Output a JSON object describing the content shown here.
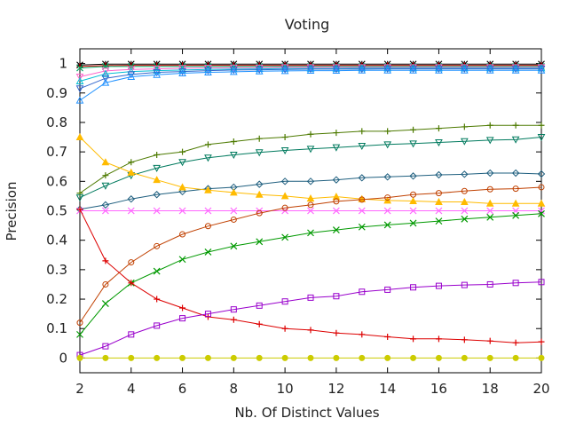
{
  "chart_data": {
    "type": "line",
    "title": "Voting",
    "xlabel": "Nb. Of Distinct Values",
    "ylabel": "Precision",
    "xlim": [
      2,
      20
    ],
    "ylim": [
      -0.05,
      1.05
    ],
    "x_ticks": [
      "2",
      "4",
      "6",
      "8",
      "10",
      "12",
      "14",
      "16",
      "18",
      "20"
    ],
    "y_ticks": [
      "0",
      "0.1",
      "0.2",
      "0.3",
      "0.4",
      "0.5",
      "0.6",
      "0.7",
      "0.8",
      "0.9",
      "1"
    ],
    "grid": false,
    "legend": "none",
    "x": [
      2,
      3,
      4,
      5,
      6,
      7,
      8,
      9,
      10,
      11,
      12,
      13,
      14,
      15,
      16,
      17,
      18,
      19,
      20
    ],
    "series": [
      {
        "color": "#000000",
        "marker": "star",
        "values": [
          0.995,
          0.998,
          0.998,
          0.998,
          0.998,
          0.998,
          0.998,
          0.998,
          0.998,
          0.998,
          0.998,
          0.998,
          0.998,
          0.998,
          0.998,
          0.998,
          0.998,
          0.998,
          0.998
        ]
      },
      {
        "color": "#cc0000",
        "marker": "plus",
        "values": [
          0.99,
          0.993,
          0.994,
          0.994,
          0.994,
          0.994,
          0.994,
          0.994,
          0.994,
          0.994,
          0.994,
          0.994,
          0.994,
          0.994,
          0.994,
          0.994,
          0.994,
          0.994,
          0.994
        ]
      },
      {
        "color": "#00aa66",
        "marker": "cross",
        "values": [
          0.985,
          0.99,
          0.99,
          0.99,
          0.99,
          0.99,
          0.99,
          0.99,
          0.99,
          0.99,
          0.99,
          0.99,
          0.99,
          0.99,
          0.99,
          0.99,
          0.99,
          0.99,
          0.99
        ]
      },
      {
        "color": "#ff66cc",
        "marker": "triangle-down",
        "values": [
          0.955,
          0.975,
          0.98,
          0.982,
          0.984,
          0.985,
          0.986,
          0.986,
          0.987,
          0.987,
          0.987,
          0.987,
          0.987,
          0.987,
          0.987,
          0.987,
          0.987,
          0.987,
          0.987
        ]
      },
      {
        "color": "#00bcd4",
        "marker": "triangle",
        "values": [
          0.94,
          0.965,
          0.973,
          0.976,
          0.978,
          0.98,
          0.981,
          0.982,
          0.983,
          0.983,
          0.983,
          0.984,
          0.984,
          0.984,
          0.984,
          0.984,
          0.984,
          0.984,
          0.984
        ]
      },
      {
        "color": "#3366cc",
        "marker": "triangle-down",
        "values": [
          0.915,
          0.95,
          0.963,
          0.97,
          0.973,
          0.976,
          0.978,
          0.979,
          0.98,
          0.981,
          0.981,
          0.981,
          0.982,
          0.982,
          0.982,
          0.982,
          0.982,
          0.982,
          0.982
        ]
      },
      {
        "color": "#1e90ff",
        "marker": "triangle",
        "values": [
          0.875,
          0.935,
          0.955,
          0.962,
          0.967,
          0.97,
          0.972,
          0.974,
          0.975,
          0.976,
          0.976,
          0.977,
          0.977,
          0.977,
          0.977,
          0.977,
          0.977,
          0.977,
          0.977
        ]
      },
      {
        "color": "#4d7a00",
        "marker": "plus",
        "values": [
          0.56,
          0.62,
          0.665,
          0.69,
          0.7,
          0.725,
          0.735,
          0.745,
          0.75,
          0.76,
          0.765,
          0.77,
          0.77,
          0.775,
          0.78,
          0.785,
          0.79,
          0.79,
          0.79
        ]
      },
      {
        "color": "#007a5e",
        "marker": "triangle-down",
        "values": [
          0.545,
          0.585,
          0.62,
          0.645,
          0.665,
          0.68,
          0.69,
          0.698,
          0.705,
          0.71,
          0.715,
          0.72,
          0.725,
          0.728,
          0.732,
          0.736,
          0.74,
          0.742,
          0.75
        ]
      },
      {
        "color": "#1f5f7f",
        "marker": "diamond",
        "values": [
          0.505,
          0.52,
          0.54,
          0.555,
          0.565,
          0.575,
          0.58,
          0.59,
          0.6,
          0.6,
          0.605,
          0.612,
          0.615,
          0.618,
          0.622,
          0.624,
          0.628,
          0.628,
          0.625
        ]
      },
      {
        "color": "#ffbb00",
        "marker": "triangle-filled",
        "values": [
          0.75,
          0.665,
          0.63,
          0.605,
          0.58,
          0.57,
          0.562,
          0.555,
          0.55,
          0.542,
          0.548,
          0.54,
          0.535,
          0.533,
          0.53,
          0.53,
          0.525,
          0.525,
          0.525
        ]
      },
      {
        "color": "#ff66ff",
        "marker": "cross",
        "values": [
          0.5,
          0.5,
          0.5,
          0.5,
          0.5,
          0.5,
          0.5,
          0.5,
          0.5,
          0.5,
          0.5,
          0.5,
          0.5,
          0.5,
          0.5,
          0.5,
          0.5,
          0.5,
          0.5
        ]
      },
      {
        "color": "#c04000",
        "marker": "circle",
        "values": [
          0.12,
          0.25,
          0.325,
          0.38,
          0.42,
          0.448,
          0.47,
          0.492,
          0.51,
          0.52,
          0.532,
          0.538,
          0.545,
          0.555,
          0.56,
          0.567,
          0.573,
          0.575,
          0.58
        ]
      },
      {
        "color": "#009900",
        "marker": "cross",
        "values": [
          0.08,
          0.185,
          0.255,
          0.295,
          0.335,
          0.36,
          0.38,
          0.395,
          0.41,
          0.425,
          0.435,
          0.445,
          0.452,
          0.458,
          0.465,
          0.472,
          0.478,
          0.484,
          0.49
        ]
      },
      {
        "color": "#dd0000",
        "marker": "plus",
        "values": [
          0.505,
          0.33,
          0.255,
          0.2,
          0.17,
          0.14,
          0.13,
          0.115,
          0.1,
          0.095,
          0.085,
          0.08,
          0.072,
          0.065,
          0.065,
          0.062,
          0.058,
          0.052,
          0.055
        ]
      },
      {
        "color": "#9900cc",
        "marker": "square",
        "values": [
          0.01,
          0.04,
          0.08,
          0.11,
          0.135,
          0.15,
          0.165,
          0.178,
          0.192,
          0.205,
          0.21,
          0.225,
          0.232,
          0.24,
          0.245,
          0.248,
          0.25,
          0.255,
          0.258
        ]
      },
      {
        "color": "#cccc00",
        "marker": "circle-filled",
        "values": [
          0,
          0,
          0,
          0,
          0,
          0,
          0,
          0,
          0,
          0,
          0,
          0,
          0,
          0,
          0,
          0,
          0,
          0,
          0
        ]
      }
    ]
  }
}
